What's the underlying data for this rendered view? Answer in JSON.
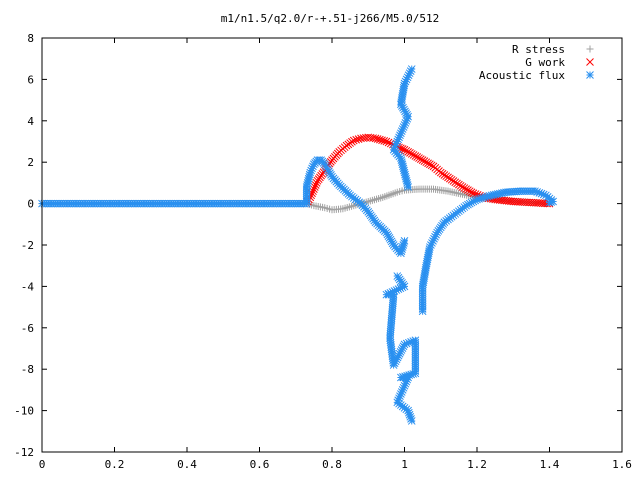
{
  "chart_data": {
    "type": "scatter",
    "title": "m1/n1.5/q2.0/r-+.51-j266/M5.0/512",
    "xlabel": "",
    "ylabel": "",
    "xlim": [
      0,
      1.6
    ],
    "ylim": [
      -12,
      8
    ],
    "xticks": [
      "0",
      "0.2",
      "0.4",
      "0.6",
      "0.8",
      "1",
      "1.2",
      "1.4",
      "1.6"
    ],
    "yticks": [
      "8",
      "6",
      "4",
      "2",
      "0",
      "-2",
      "-4",
      "-6",
      "-8",
      "-10",
      "-12"
    ],
    "grid": false,
    "legend_position": "top-right",
    "series": [
      {
        "name": "R stress",
        "marker": "plus",
        "color": "#a0a0a0",
        "points": [
          [
            0.0,
            0.0
          ],
          [
            0.1,
            0.0
          ],
          [
            0.2,
            0.0
          ],
          [
            0.3,
            0.0
          ],
          [
            0.4,
            0.0
          ],
          [
            0.5,
            0.0
          ],
          [
            0.6,
            0.0
          ],
          [
            0.7,
            0.0
          ],
          [
            0.73,
            0.0
          ],
          [
            0.75,
            -0.1
          ],
          [
            0.78,
            -0.2
          ],
          [
            0.8,
            -0.3
          ],
          [
            0.83,
            -0.25
          ],
          [
            0.86,
            -0.1
          ],
          [
            0.9,
            0.1
          ],
          [
            0.94,
            0.3
          ],
          [
            0.98,
            0.55
          ],
          [
            1.0,
            0.65
          ],
          [
            1.04,
            0.7
          ],
          [
            1.08,
            0.7
          ],
          [
            1.12,
            0.6
          ],
          [
            1.16,
            0.45
          ],
          [
            1.2,
            0.3
          ],
          [
            1.25,
            0.2
          ],
          [
            1.3,
            0.1
          ],
          [
            1.35,
            0.05
          ],
          [
            1.4,
            0.0
          ]
        ]
      },
      {
        "name": "G work",
        "marker": "cross",
        "color": "#ff0000",
        "points": [
          [
            0.73,
            0.0
          ],
          [
            0.74,
            0.3
          ],
          [
            0.75,
            0.7
          ],
          [
            0.76,
            1.1
          ],
          [
            0.78,
            1.6
          ],
          [
            0.8,
            2.1
          ],
          [
            0.82,
            2.5
          ],
          [
            0.84,
            2.8
          ],
          [
            0.86,
            3.05
          ],
          [
            0.88,
            3.15
          ],
          [
            0.9,
            3.2
          ],
          [
            0.92,
            3.15
          ],
          [
            0.95,
            3.0
          ],
          [
            0.98,
            2.75
          ],
          [
            1.0,
            2.6
          ],
          [
            1.02,
            2.4
          ],
          [
            1.05,
            2.1
          ],
          [
            1.08,
            1.8
          ],
          [
            1.1,
            1.5
          ],
          [
            1.13,
            1.15
          ],
          [
            1.16,
            0.8
          ],
          [
            1.19,
            0.5
          ],
          [
            1.22,
            0.3
          ],
          [
            1.25,
            0.2
          ],
          [
            1.3,
            0.1
          ],
          [
            1.35,
            0.05
          ],
          [
            1.4,
            0.0
          ]
        ]
      },
      {
        "name": "Acoustic flux",
        "marker": "star",
        "color": "#2a90f0",
        "points": [
          [
            0.0,
            0.0
          ],
          [
            0.1,
            0.0
          ],
          [
            0.2,
            0.0
          ],
          [
            0.3,
            0.0
          ],
          [
            0.4,
            0.0
          ],
          [
            0.5,
            0.0
          ],
          [
            0.6,
            0.0
          ],
          [
            0.7,
            0.0
          ],
          [
            0.73,
            0.0
          ],
          [
            0.73,
            0.8
          ],
          [
            0.74,
            1.5
          ],
          [
            0.75,
            1.9
          ],
          [
            0.76,
            2.1
          ],
          [
            0.77,
            2.1
          ],
          [
            0.78,
            1.9
          ],
          [
            0.8,
            1.3
          ],
          [
            0.82,
            0.9
          ],
          [
            0.85,
            0.4
          ],
          [
            0.88,
            0.0
          ],
          [
            0.9,
            -0.4
          ],
          [
            0.92,
            -0.9
          ],
          [
            0.95,
            -1.4
          ],
          [
            0.97,
            -2.0
          ],
          [
            0.99,
            -2.4
          ],
          [
            1.0,
            -1.8
          ],
          [
            1.02,
            6.5
          ],
          [
            1.0,
            5.8
          ],
          [
            0.99,
            4.8
          ],
          [
            1.01,
            4.2
          ],
          [
            0.97,
            2.6
          ],
          [
            0.99,
            2.2
          ],
          [
            1.01,
            0.8
          ],
          [
            0.98,
            -3.5
          ],
          [
            1.0,
            -4.0
          ],
          [
            0.95,
            -4.4
          ],
          [
            0.97,
            -4.4
          ],
          [
            0.96,
            -6.5
          ],
          [
            0.97,
            -7.8
          ],
          [
            1.0,
            -6.8
          ],
          [
            1.03,
            -6.6
          ],
          [
            1.03,
            -8.2
          ],
          [
            0.99,
            -8.4
          ],
          [
            1.01,
            -8.4
          ],
          [
            0.98,
            -9.6
          ],
          [
            1.01,
            -10.0
          ],
          [
            1.02,
            -10.5
          ],
          [
            1.05,
            -5.2
          ],
          [
            1.05,
            -4.0
          ],
          [
            1.06,
            -3.0
          ],
          [
            1.07,
            -2.1
          ],
          [
            1.09,
            -1.4
          ],
          [
            1.11,
            -0.9
          ],
          [
            1.14,
            -0.5
          ],
          [
            1.17,
            -0.1
          ],
          [
            1.2,
            0.2
          ],
          [
            1.24,
            0.4
          ],
          [
            1.28,
            0.55
          ],
          [
            1.32,
            0.6
          ],
          [
            1.36,
            0.6
          ],
          [
            1.39,
            0.4
          ],
          [
            1.41,
            0.1
          ],
          [
            1.4,
            0.05
          ]
        ]
      }
    ]
  }
}
